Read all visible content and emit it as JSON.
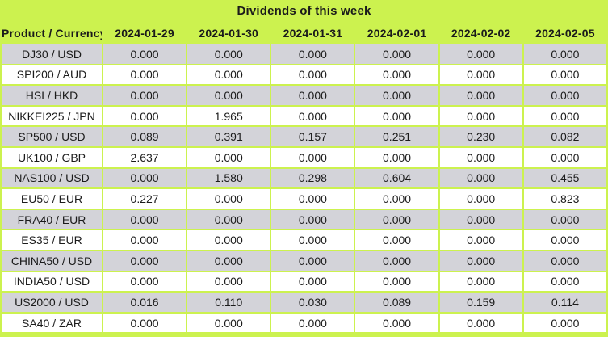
{
  "title": "Dividends of this week",
  "chart_data": {
    "type": "table",
    "title": "Dividends of this week",
    "columns": [
      "Product / Currency",
      "2024-01-29",
      "2024-01-30",
      "2024-01-31",
      "2024-02-01",
      "2024-02-02",
      "2024-02-05"
    ],
    "rows": [
      [
        "DJ30 / USD",
        "0.000",
        "0.000",
        "0.000",
        "0.000",
        "0.000",
        "0.000"
      ],
      [
        "SPI200 / AUD",
        "0.000",
        "0.000",
        "0.000",
        "0.000",
        "0.000",
        "0.000"
      ],
      [
        "HSI / HKD",
        "0.000",
        "0.000",
        "0.000",
        "0.000",
        "0.000",
        "0.000"
      ],
      [
        "NIKKEI225 / JPN",
        "0.000",
        "1.965",
        "0.000",
        "0.000",
        "0.000",
        "0.000"
      ],
      [
        "SP500 / USD",
        "0.089",
        "0.391",
        "0.157",
        "0.251",
        "0.230",
        "0.082"
      ],
      [
        "UK100 / GBP",
        "2.637",
        "0.000",
        "0.000",
        "0.000",
        "0.000",
        "0.000"
      ],
      [
        "NAS100 / USD",
        "0.000",
        "1.580",
        "0.298",
        "0.604",
        "0.000",
        "0.455"
      ],
      [
        "EU50 / EUR",
        "0.227",
        "0.000",
        "0.000",
        "0.000",
        "0.000",
        "0.823"
      ],
      [
        "FRA40 / EUR",
        "0.000",
        "0.000",
        "0.000",
        "0.000",
        "0.000",
        "0.000"
      ],
      [
        "ES35 / EUR",
        "0.000",
        "0.000",
        "0.000",
        "0.000",
        "0.000",
        "0.000"
      ],
      [
        "CHINA50 / USD",
        "0.000",
        "0.000",
        "0.000",
        "0.000",
        "0.000",
        "0.000"
      ],
      [
        "INDIA50 / USD",
        "0.000",
        "0.000",
        "0.000",
        "0.000",
        "0.000",
        "0.000"
      ],
      [
        "US2000 / USD",
        "0.016",
        "0.110",
        "0.030",
        "0.089",
        "0.159",
        "0.114"
      ],
      [
        "SA40 / ZAR",
        "0.000",
        "0.000",
        "0.000",
        "0.000",
        "0.000",
        "0.000"
      ]
    ],
    "layout": {
      "striped": true,
      "first_shaded_row_index": 0,
      "grid": true
    }
  },
  "colors": {
    "green_background": "#ccf24f",
    "row_gray": "#d3d3d9",
    "row_white": "#ffffff",
    "text": "#1b1b1b"
  }
}
